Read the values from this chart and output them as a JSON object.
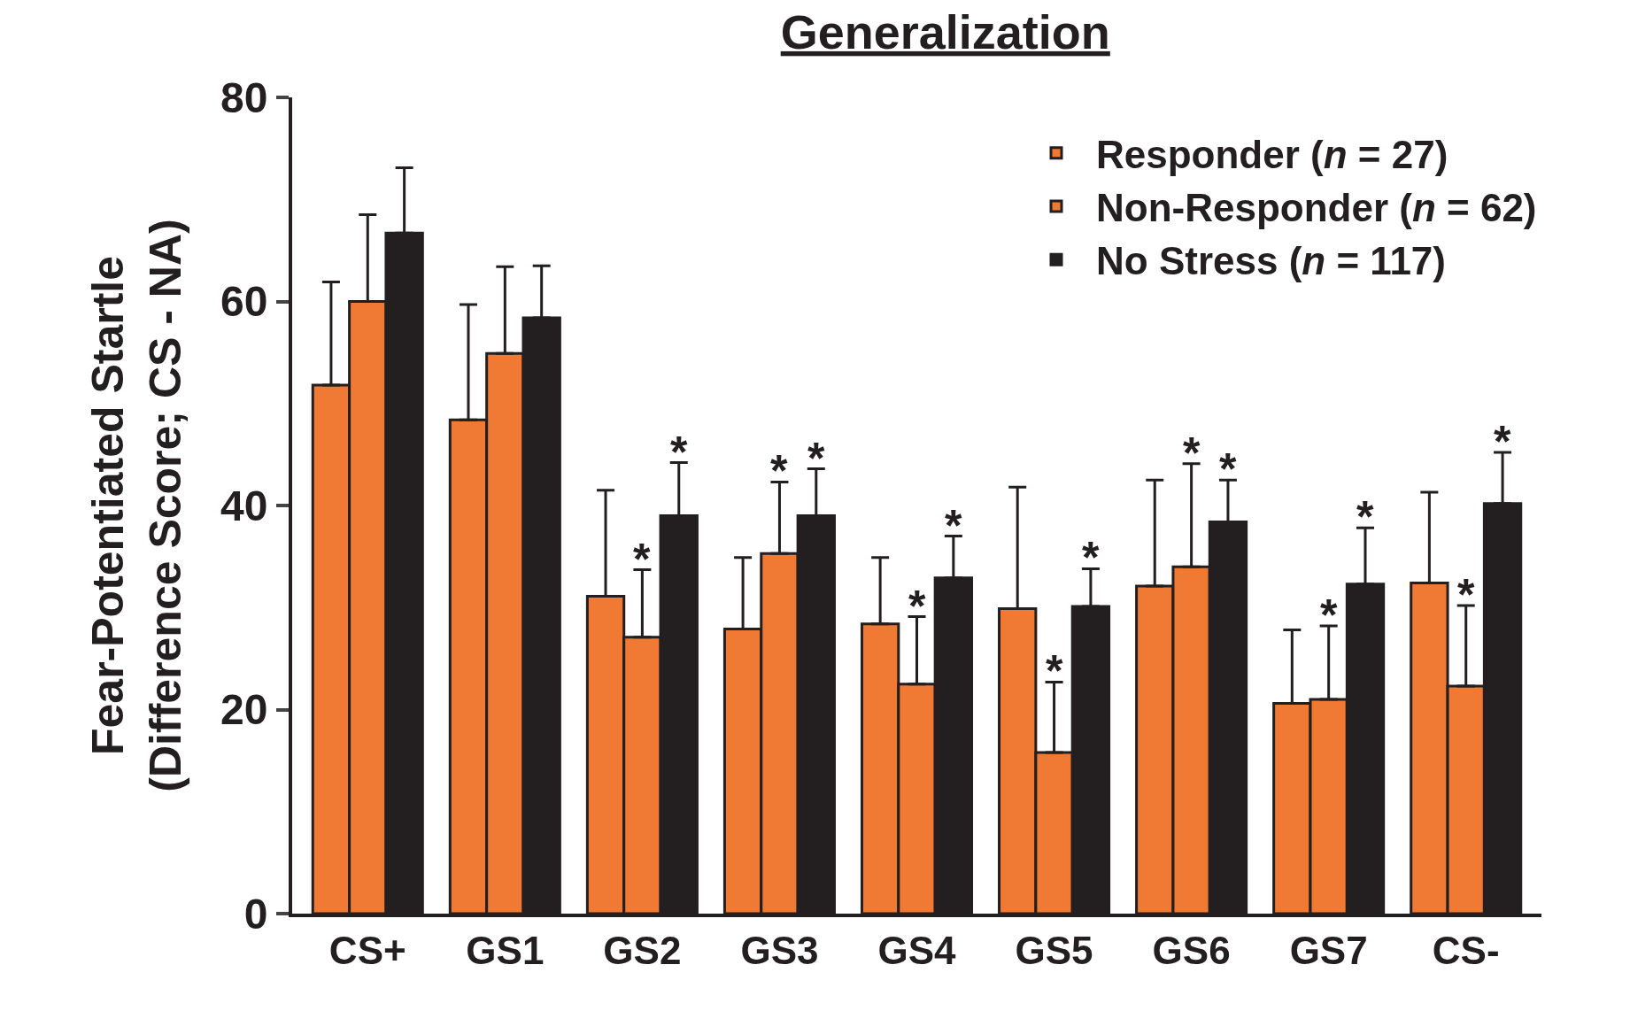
{
  "chart_data": {
    "type": "bar",
    "title": "Generalization",
    "ylabel": "Fear-Potentiated Startle\n(Difference Score; CS - NA)",
    "categories": [
      "CS+",
      "GS1",
      "GS2",
      "GS3",
      "GS4",
      "GS5",
      "GS6",
      "GS7",
      "CS-"
    ],
    "series": [
      {
        "name": "Responder (n = 27)",
        "color": "#f07a33",
        "values": [
          51.8,
          48.4,
          31.1,
          27.9,
          28.4,
          29.9,
          32.1,
          20.6,
          32.4
        ],
        "errors": [
          [
            51.8,
            61.9
          ],
          [
            48.4,
            59.7
          ],
          [
            31.1,
            41.5
          ],
          [
            27.9,
            34.9
          ],
          [
            28.4,
            34.9
          ],
          [
            29.9,
            41.8
          ],
          [
            32.1,
            42.5
          ],
          [
            20.6,
            27.8
          ],
          [
            32.4,
            41.3
          ]
        ],
        "value_labels": [
          null,
          null,
          null,
          null,
          null,
          null,
          null,
          null,
          null
        ]
      },
      {
        "name": "Non-Responder (n = 62)",
        "color": "#f07a33",
        "values": [
          60.0,
          54.9,
          27.1,
          35.3,
          22.5,
          15.8,
          34.0,
          21.0,
          22.3
        ],
        "errors": [
          [
            60.0,
            68.5
          ],
          [
            54.9,
            63.4
          ],
          [
            27.1,
            33.7
          ],
          [
            35.3,
            42.3
          ],
          [
            22.5,
            29.1
          ],
          [
            15.8,
            22.7
          ],
          [
            34.0,
            44.1
          ],
          [
            21.0,
            28.2
          ],
          [
            22.3,
            30.2
          ]
        ],
        "value_labels": [
          null,
          null,
          "*",
          "*",
          "*",
          "*",
          "*",
          "*",
          "*"
        ]
      },
      {
        "name": "No Stress (n = 117)",
        "color": "#231f20",
        "values": [
          66.7,
          58.4,
          39.0,
          39.0,
          32.9,
          30.1,
          38.4,
          32.3,
          40.2
        ],
        "errors": [
          [
            66.7,
            73.1
          ],
          [
            58.4,
            63.5
          ],
          [
            39.0,
            44.2
          ],
          [
            39.0,
            43.6
          ],
          [
            32.9,
            37.0
          ],
          [
            30.1,
            33.8
          ],
          [
            38.4,
            42.5
          ],
          [
            32.3,
            37.8
          ],
          [
            40.2,
            45.2
          ]
        ],
        "value_labels": [
          null,
          null,
          "*",
          "*",
          "*",
          "*",
          "*",
          "*",
          "*"
        ]
      }
    ],
    "ylim": [
      0,
      80
    ],
    "yticks": [
      0,
      20,
      40,
      60,
      80
    ],
    "legend": "top right"
  }
}
